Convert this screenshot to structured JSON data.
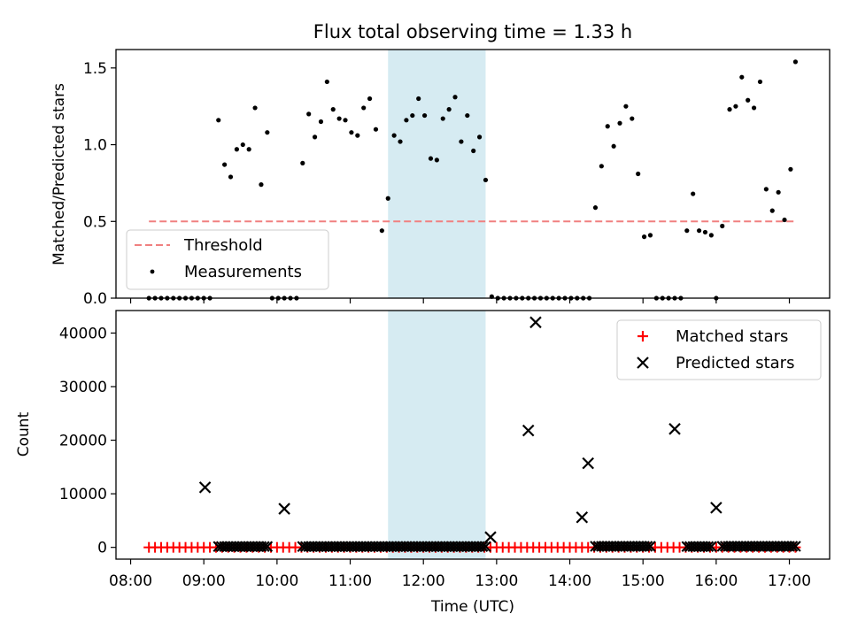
{
  "chart_data": [
    {
      "type": "scatter",
      "title": "Flux total observing time = 1.33 h",
      "xlabel": "",
      "ylabel": "Matched/Predicted stars",
      "ylim": [
        0,
        1.62
      ],
      "yticks": [
        "0.0",
        "0.5",
        "1.0",
        "1.5"
      ],
      "ytick_values": [
        0,
        0.5,
        1.0,
        1.5
      ],
      "highlight_span": [
        "11:31",
        "12:51"
      ],
      "threshold": {
        "name": "Threshold",
        "value": 0.5,
        "x_start": "08:15",
        "x_end": "17:05",
        "color": "#f08080"
      },
      "legend_position": "lower-left",
      "series": [
        {
          "name": "Measurements",
          "color": "#000000",
          "points": [
            [
              "08:15",
              0
            ],
            [
              "08:20",
              0
            ],
            [
              "08:25",
              0
            ],
            [
              "08:30",
              0
            ],
            [
              "08:35",
              0
            ],
            [
              "08:40",
              0
            ],
            [
              "08:45",
              0
            ],
            [
              "08:50",
              0
            ],
            [
              "08:55",
              0
            ],
            [
              "09:00",
              0
            ],
            [
              "09:05",
              0
            ],
            [
              "09:12",
              1.16
            ],
            [
              "09:17",
              0.87
            ],
            [
              "09:22",
              0.79
            ],
            [
              "09:27",
              0.97
            ],
            [
              "09:32",
              1.0
            ],
            [
              "09:37",
              0.97
            ],
            [
              "09:42",
              1.24
            ],
            [
              "09:47",
              0.74
            ],
            [
              "09:52",
              1.08
            ],
            [
              "09:56",
              0
            ],
            [
              "10:01",
              0
            ],
            [
              "10:06",
              0
            ],
            [
              "10:11",
              0
            ],
            [
              "10:16",
              0
            ],
            [
              "10:21",
              0.88
            ],
            [
              "10:26",
              1.2
            ],
            [
              "10:31",
              1.05
            ],
            [
              "10:36",
              1.15
            ],
            [
              "10:41",
              1.41
            ],
            [
              "10:46",
              1.23
            ],
            [
              "10:51",
              1.17
            ],
            [
              "10:56",
              1.16
            ],
            [
              "11:01",
              1.08
            ],
            [
              "11:06",
              1.06
            ],
            [
              "11:11",
              1.24
            ],
            [
              "11:16",
              1.3
            ],
            [
              "11:21",
              1.1
            ],
            [
              "11:26",
              0.44
            ],
            [
              "11:31",
              0.65
            ],
            [
              "11:36",
              1.06
            ],
            [
              "11:41",
              1.02
            ],
            [
              "11:46",
              1.16
            ],
            [
              "11:51",
              1.19
            ],
            [
              "11:56",
              1.3
            ],
            [
              "12:01",
              1.19
            ],
            [
              "12:06",
              0.91
            ],
            [
              "12:11",
              0.9
            ],
            [
              "12:16",
              1.17
            ],
            [
              "12:21",
              1.23
            ],
            [
              "12:26",
              1.31
            ],
            [
              "12:31",
              1.02
            ],
            [
              "12:36",
              1.19
            ],
            [
              "12:41",
              0.96
            ],
            [
              "12:46",
              1.05
            ],
            [
              "12:51",
              0.77
            ],
            [
              "12:56",
              0.01
            ],
            [
              "13:01",
              0
            ],
            [
              "13:06",
              0
            ],
            [
              "13:11",
              0
            ],
            [
              "13:16",
              0
            ],
            [
              "13:21",
              0
            ],
            [
              "13:26",
              0
            ],
            [
              "13:31",
              0
            ],
            [
              "13:36",
              0
            ],
            [
              "13:41",
              0
            ],
            [
              "13:46",
              0
            ],
            [
              "13:51",
              0
            ],
            [
              "13:56",
              0
            ],
            [
              "14:01",
              0
            ],
            [
              "14:06",
              0
            ],
            [
              "14:11",
              0
            ],
            [
              "14:16",
              0
            ],
            [
              "14:21",
              0.59
            ],
            [
              "14:26",
              0.86
            ],
            [
              "14:31",
              1.12
            ],
            [
              "14:36",
              0.99
            ],
            [
              "14:41",
              1.14
            ],
            [
              "14:46",
              1.25
            ],
            [
              "14:51",
              1.17
            ],
            [
              "14:56",
              0.81
            ],
            [
              "15:01",
              0.4
            ],
            [
              "15:06",
              0.41
            ],
            [
              "15:11",
              0
            ],
            [
              "15:16",
              0
            ],
            [
              "15:21",
              0
            ],
            [
              "15:26",
              0
            ],
            [
              "15:31",
              0
            ],
            [
              "15:36",
              0.44
            ],
            [
              "15:41",
              0.68
            ],
            [
              "15:46",
              0.44
            ],
            [
              "15:51",
              0.43
            ],
            [
              "15:56",
              0.41
            ],
            [
              "16:00",
              0
            ],
            [
              "16:05",
              0.47
            ],
            [
              "16:11",
              1.23
            ],
            [
              "16:16",
              1.25
            ],
            [
              "16:21",
              1.44
            ],
            [
              "16:26",
              1.29
            ],
            [
              "16:31",
              1.24
            ],
            [
              "16:36",
              1.41
            ],
            [
              "16:41",
              0.71
            ],
            [
              "16:46",
              0.57
            ],
            [
              "16:51",
              0.69
            ],
            [
              "16:56",
              0.51
            ],
            [
              "17:01",
              0.84
            ],
            [
              "17:05",
              1.54
            ]
          ]
        }
      ]
    },
    {
      "type": "scatter",
      "title": "",
      "xlabel": "Time (UTC)",
      "ylabel": "Count",
      "ylim": [
        -2200,
        44200
      ],
      "yticks": [
        "0",
        "10000",
        "20000",
        "30000",
        "40000"
      ],
      "ytick_values": [
        0,
        10000,
        20000,
        30000,
        40000
      ],
      "xticks": [
        "08:00",
        "09:00",
        "10:00",
        "11:00",
        "12:00",
        "13:00",
        "14:00",
        "15:00",
        "16:00",
        "17:00"
      ],
      "xlim": [
        "07:48",
        "17:33"
      ],
      "legend_position": "upper-right",
      "series": [
        {
          "name": "Matched stars",
          "color": "#ff0000",
          "marker": "+",
          "x_range": [
            "08:15",
            "17:05"
          ],
          "step_minutes": 5,
          "value": 0
        },
        {
          "name": "Predicted stars",
          "color": "#000000",
          "marker": "x",
          "points": [
            [
              "09:01",
              11200
            ],
            [
              "10:06",
              7200
            ],
            [
              "12:55",
              1900
            ],
            [
              "13:26",
              21800
            ],
            [
              "13:32",
              42000
            ],
            [
              "14:10",
              5600
            ],
            [
              "14:15",
              15700
            ],
            [
              "15:26",
              22100
            ],
            [
              "16:00",
              7400
            ]
          ],
          "low_clusters": [
            {
              "start": "09:12",
              "end": "09:52",
              "step": 2.5,
              "value": 150
            },
            {
              "start": "10:21",
              "end": "12:51",
              "step": 2.5,
              "value": 150
            },
            {
              "start": "14:21",
              "end": "15:06",
              "step": 2.5,
              "value": 200
            },
            {
              "start": "15:36",
              "end": "15:56",
              "step": 2.5,
              "value": 150
            },
            {
              "start": "16:05",
              "end": "17:05",
              "step": 2.5,
              "value": 200
            }
          ]
        }
      ]
    }
  ]
}
